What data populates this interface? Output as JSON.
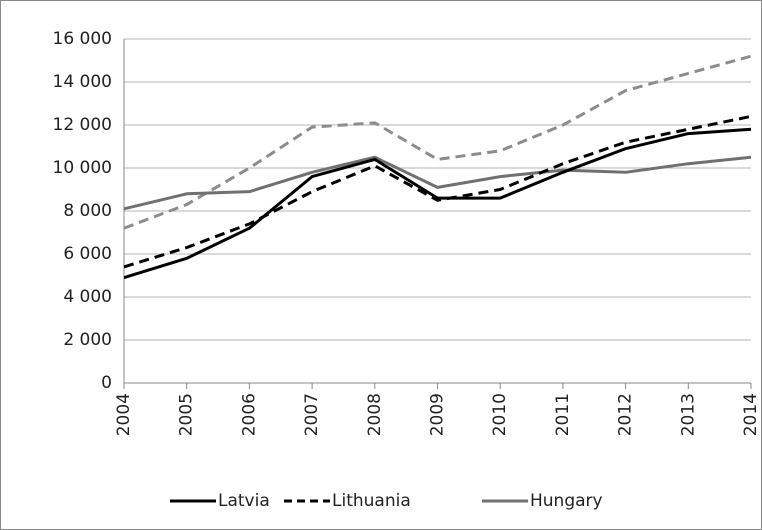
{
  "chart_data": {
    "type": "line",
    "categories": [
      "2004",
      "2005",
      "2006",
      "2007",
      "2008",
      "2009",
      "2010",
      "2011",
      "2012",
      "2013",
      "2014"
    ],
    "series": [
      {
        "name": "Latvia",
        "color": "#000000",
        "dash": false,
        "values": [
          4900,
          5800,
          7200,
          9600,
          10400,
          8600,
          8600,
          9800,
          10900,
          11600,
          11800
        ]
      },
      {
        "name": "Lithuania",
        "color": "#000000",
        "dash": true,
        "values": [
          5400,
          6300,
          7400,
          8900,
          10100,
          8500,
          9000,
          10200,
          11200,
          11800,
          12400
        ]
      },
      {
        "name": "Hungary",
        "color": "#707070",
        "dash": false,
        "values": [
          8100,
          8800,
          8900,
          9800,
          10500,
          9100,
          9600,
          9900,
          9800,
          10200,
          10500
        ]
      },
      {
        "color": "#8c8c8c",
        "dash": true,
        "values": [
          7200,
          8300,
          10000,
          11900,
          12100,
          10400,
          10800,
          12000,
          13600,
          14400,
          15200
        ]
      }
    ],
    "ylim": [
      0,
      16000
    ],
    "yticks": [
      0,
      {
        "value": 2000,
        "label": "2 000"
      },
      {
        "value": 4000,
        "label": "4 000"
      },
      {
        "value": 6000,
        "label": "6 000"
      },
      {
        "value": 8000,
        "label": "8 000"
      },
      {
        "value": 10000,
        "label": "10 000"
      },
      {
        "value": 12000,
        "label": "12 000"
      },
      {
        "value": 14000,
        "label": "14 000"
      },
      {
        "value": 16000,
        "label": "16 000"
      }
    ],
    "grid": true,
    "legend": "bottom"
  }
}
